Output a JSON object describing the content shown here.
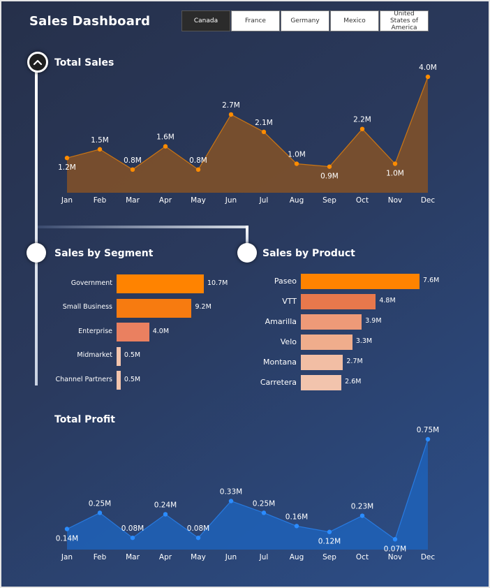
{
  "header": {
    "title": "Sales Dashboard"
  },
  "tabs": [
    {
      "label": "Canada",
      "active": true
    },
    {
      "label": "France",
      "active": false
    },
    {
      "label": "Germany",
      "active": false
    },
    {
      "label": "Mexico",
      "active": false
    },
    {
      "label": "United States of America",
      "active": false
    }
  ],
  "sections": {
    "total_sales": "Total Sales",
    "by_segment": "Sales by Segment",
    "by_product": "Sales by Product",
    "total_profit": "Total Profit"
  },
  "colors": {
    "sales_area": "#7a4f2c",
    "sales_line": "#ff8c00",
    "profit_area": "#1f62b8",
    "profit_point": "#2b8cff",
    "bar_dark": "#ff8300",
    "bar_mid": "#ea8060",
    "bar_light": "#f2c4ad"
  },
  "chart_data": [
    {
      "type": "area",
      "title": "Total Sales",
      "categories": [
        "Jan",
        "Feb",
        "Mar",
        "Apr",
        "May",
        "Jun",
        "Jul",
        "Aug",
        "Sep",
        "Oct",
        "Nov",
        "Dec"
      ],
      "values": [
        1.2,
        1.5,
        0.8,
        1.6,
        0.8,
        2.7,
        2.1,
        1.0,
        0.9,
        2.2,
        1.0,
        4.0
      ],
      "labels": [
        "1.2M",
        "1.5M",
        "0.8M",
        "1.6M",
        "0.8M",
        "2.7M",
        "2.1M",
        "1.0M",
        "0.9M",
        "2.2M",
        "1.0M",
        "4.0M"
      ],
      "ylim": [
        0,
        4.0
      ],
      "grid": false
    },
    {
      "type": "bar",
      "title": "Sales by Segment",
      "categories": [
        "Government",
        "Small Business",
        "Enterprise",
        "Midmarket",
        "Channel Partners"
      ],
      "values": [
        10.7,
        9.2,
        4.0,
        0.5,
        0.5
      ],
      "labels": [
        "10.7M",
        "9.2M",
        "4.0M",
        "0.5M",
        "0.5M"
      ],
      "bar_colors": [
        "#ff8300",
        "#f77b10",
        "#ea8060",
        "#f2c4ad",
        "#f2c4ad"
      ]
    },
    {
      "type": "bar",
      "title": "Sales by Product",
      "categories": [
        "Paseo",
        "VTT",
        "Amarilla",
        "Velo",
        "Montana",
        "Carretera"
      ],
      "values": [
        7.6,
        4.8,
        3.9,
        3.3,
        2.7,
        2.6
      ],
      "labels": [
        "7.6M",
        "4.8M",
        "3.9M",
        "3.3M",
        "2.7M",
        "2.6M"
      ],
      "bar_colors": [
        "#ff8300",
        "#e8784c",
        "#ee9a78",
        "#f0ad8c",
        "#f2bea4",
        "#f2c4ad"
      ]
    },
    {
      "type": "area",
      "title": "Total Profit",
      "categories": [
        "Jan",
        "Feb",
        "Mar",
        "Apr",
        "May",
        "Jun",
        "Jul",
        "Aug",
        "Sep",
        "Oct",
        "Nov",
        "Dec"
      ],
      "values": [
        0.14,
        0.25,
        0.08,
        0.24,
        0.08,
        0.33,
        0.25,
        0.16,
        0.12,
        0.23,
        0.07,
        0.75
      ],
      "labels": [
        "0.14M",
        "0.25M",
        "0.08M",
        "0.24M",
        "0.08M",
        "0.33M",
        "0.25M",
        "0.16M",
        "0.12M",
        "0.23M",
        "0.07M",
        "0.75M"
      ],
      "ylim": [
        0,
        0.75
      ],
      "grid": false
    }
  ]
}
